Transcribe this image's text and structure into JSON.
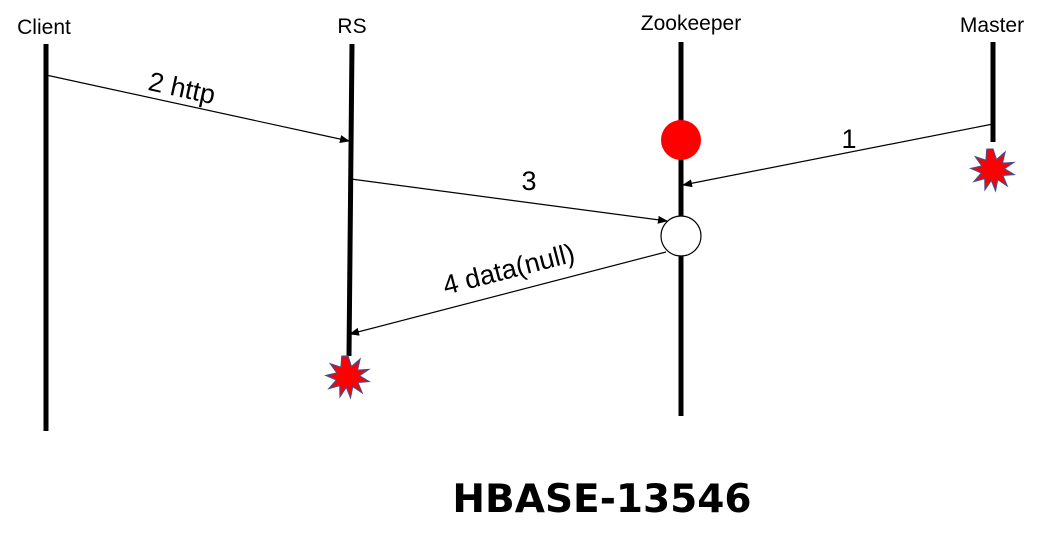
{
  "actors": {
    "client": "Client",
    "rs": "RS",
    "zookeeper": "Zookeeper",
    "master": "Master"
  },
  "messages": {
    "m1": "1",
    "m2": "2 http",
    "m3": "3",
    "m4": "4 data(null)"
  },
  "caption": "HBASE-13546",
  "colors": {
    "line": "#000000",
    "znode_filled": "#ff0000",
    "crash": "#ff0000",
    "crash_outline": "#4a4a8a"
  },
  "icons": {
    "crash": "explosion-icon",
    "znode_present": "filled-circle-icon",
    "znode_missing": "empty-circle-icon"
  }
}
